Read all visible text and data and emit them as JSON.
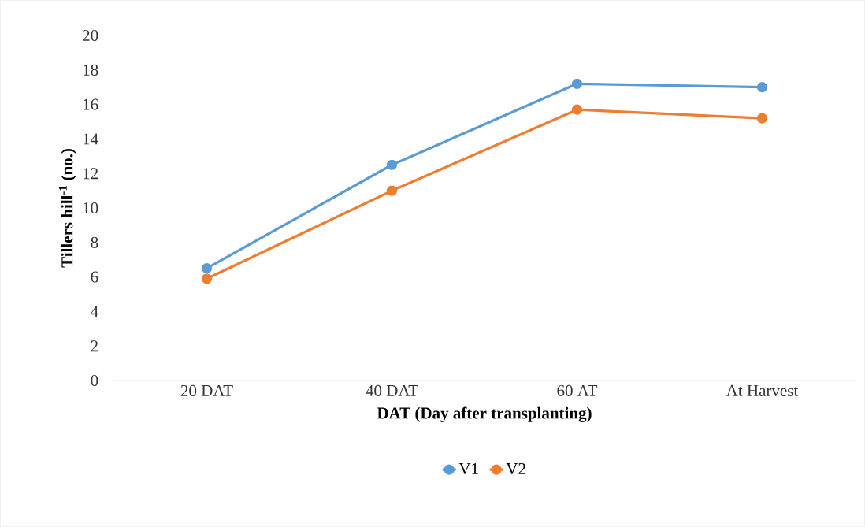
{
  "chart_data": {
    "type": "line",
    "xlabel": "DAT (Day after transplanting)",
    "ylabel": "Tillers hill$^{-1}$ (no.)",
    "categories": [
      "20 DAT",
      "40 DAT",
      "60 AT",
      "At Harvest"
    ],
    "series": [
      {
        "name": "V1",
        "color": "#5b9bd5",
        "values": [
          6.5,
          12.5,
          17.2,
          17.0
        ]
      },
      {
        "name": "V2",
        "color": "#ed7d31",
        "values": [
          5.9,
          11.0,
          15.7,
          15.2
        ]
      }
    ],
    "ylim": [
      0,
      20
    ],
    "yticks": [
      0,
      2,
      4,
      6,
      8,
      10,
      12,
      14,
      16,
      18,
      20
    ],
    "grid": false,
    "legend": "bottom",
    "marker": "circle",
    "line_style": "solid"
  }
}
